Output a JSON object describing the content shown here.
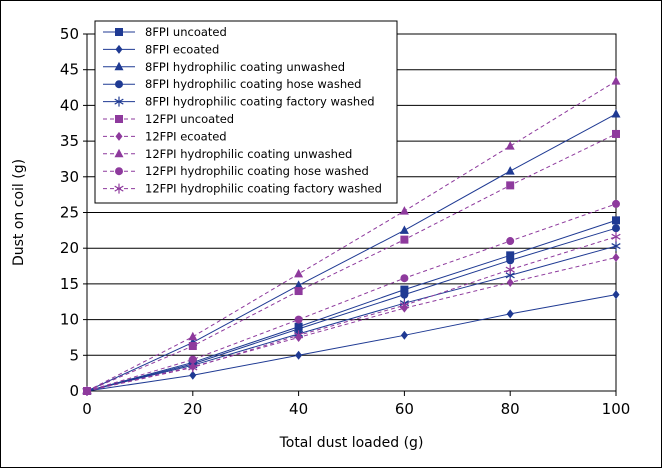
{
  "chart_data": {
    "type": "line",
    "title": "",
    "xlabel": "Total dust loaded (g)",
    "ylabel": "Dust on coil (g)",
    "xlim": [
      0,
      100
    ],
    "ylim": [
      0,
      50
    ],
    "x_ticks": [
      "0",
      "20",
      "40",
      "60",
      "80",
      "100"
    ],
    "y_ticks": [
      "0",
      "5",
      "10",
      "15",
      "20",
      "25",
      "30",
      "35",
      "40",
      "45",
      "50"
    ],
    "grid": "horizontal",
    "legend_position": "top-left",
    "x": [
      0,
      20,
      40,
      60,
      80,
      100
    ],
    "series": [
      {
        "name": "8FPI uncoated",
        "values": [
          0,
          4.0,
          9.0,
          14.2,
          19.0,
          23.9
        ],
        "color": "#1f3a93",
        "style": "solid",
        "marker": "square"
      },
      {
        "name": "8FPI ecoated",
        "values": [
          0,
          2.2,
          5.0,
          7.8,
          10.8,
          13.5
        ],
        "color": "#1f3a93",
        "style": "solid",
        "marker": "diamond"
      },
      {
        "name": "8FPI hydrophilic coating unwashed",
        "values": [
          0,
          6.8,
          14.8,
          22.5,
          30.8,
          38.8
        ],
        "color": "#1f3a93",
        "style": "solid",
        "marker": "triangle"
      },
      {
        "name": "8FPI hydrophilic coating hose washed",
        "values": [
          0,
          3.8,
          8.7,
          13.5,
          18.3,
          22.8
        ],
        "color": "#1f3a93",
        "style": "solid",
        "marker": "circle"
      },
      {
        "name": "8FPI hydrophilic coating factory washed",
        "values": [
          0,
          3.6,
          8.0,
          12.3,
          16.2,
          20.3
        ],
        "color": "#1f3a93",
        "style": "solid",
        "marker": "asterisk"
      },
      {
        "name": "12FPI uncoated",
        "values": [
          0,
          6.3,
          14.0,
          21.2,
          28.8,
          36.0
        ],
        "color": "#8e3a9d",
        "style": "dashed",
        "marker": "square"
      },
      {
        "name": "12FPI ecoated",
        "values": [
          0,
          3.4,
          7.5,
          11.6,
          15.2,
          18.7
        ],
        "color": "#8e3a9d",
        "style": "dashed",
        "marker": "diamond"
      },
      {
        "name": "12FPI hydrophilic coating unwashed",
        "values": [
          0,
          7.6,
          16.4,
          25.2,
          34.3,
          43.4
        ],
        "color": "#8e3a9d",
        "style": "dashed",
        "marker": "triangle"
      },
      {
        "name": "12FPI hydrophilic coating hose washed",
        "values": [
          0,
          4.4,
          10.0,
          15.8,
          21.0,
          26.2
        ],
        "color": "#8e3a9d",
        "style": "dashed",
        "marker": "circle"
      },
      {
        "name": "12FPI hydrophilic coating factory washed",
        "values": [
          0,
          3.3,
          7.8,
          12.0,
          17.0,
          21.6
        ],
        "color": "#8e3a9d",
        "style": "dashed",
        "marker": "asterisk"
      }
    ]
  }
}
